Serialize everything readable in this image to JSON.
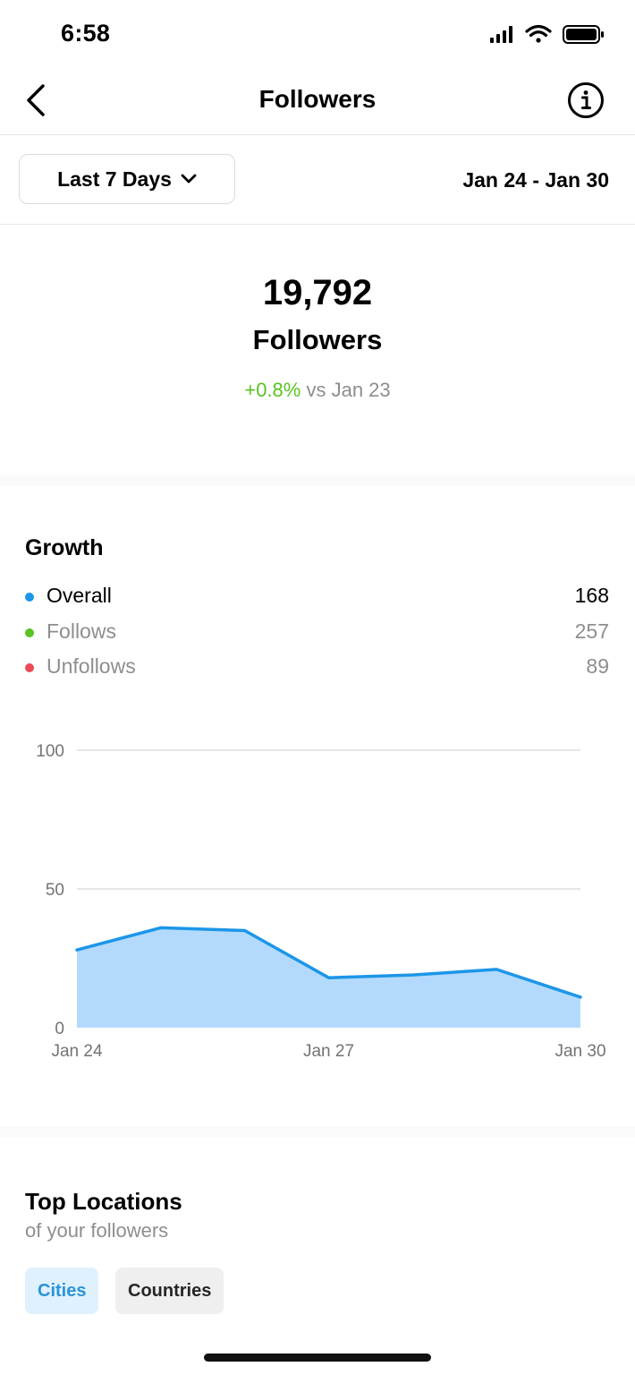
{
  "status_bar": {
    "time": "6:58"
  },
  "header": {
    "title": "Followers",
    "back_icon": "chevron-left-icon",
    "info_icon": "info-icon"
  },
  "filter": {
    "range_label": "Last 7 Days",
    "dropdown_icon": "chevron-down-icon",
    "date_range": "Jan 24 - Jan 30"
  },
  "summary": {
    "count": "19,792",
    "label": "Followers",
    "change": "+0.8%",
    "change_suffix": " vs Jan 23"
  },
  "growth": {
    "title": "Growth",
    "legend": [
      {
        "name": "Overall",
        "value": "168",
        "color": "#1c96e8"
      },
      {
        "name": "Follows",
        "value": "257",
        "color": "#58c322"
      },
      {
        "name": "Unfollows",
        "value": "89",
        "color": "#ed4956"
      }
    ]
  },
  "chart_data": {
    "type": "area",
    "x": [
      "Jan 24",
      "Jan 25",
      "Jan 26",
      "Jan 27",
      "Jan 28",
      "Jan 29",
      "Jan 30"
    ],
    "series": [
      {
        "name": "Overall",
        "values": [
          28,
          36,
          35,
          18,
          19,
          21,
          11
        ],
        "color": "#1c96e8",
        "fill": "#b3dafc"
      }
    ],
    "x_tick_labels": [
      "Jan 24",
      "Jan 27",
      "Jan 30"
    ],
    "y_ticks": [
      0,
      50,
      100
    ],
    "ylim": [
      0,
      100
    ],
    "grid": true
  },
  "locations": {
    "title": "Top Locations",
    "subtitle": "of your followers",
    "tabs": [
      {
        "label": "Cities",
        "selected": true
      },
      {
        "label": "Countries",
        "selected": false
      }
    ]
  }
}
